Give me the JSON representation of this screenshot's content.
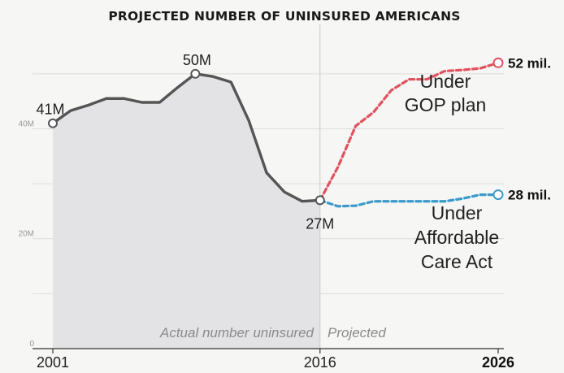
{
  "chart_data": {
    "type": "line",
    "title": "PROJECTED NUMBER OF UNINSURED AMERICANS",
    "xlim": [
      2001,
      2026
    ],
    "ylim": [
      0,
      55
    ],
    "yticks": [
      {
        "value": 0,
        "label": "0"
      },
      {
        "value": 20,
        "label": "20M"
      },
      {
        "value": 40,
        "label": "40M"
      }
    ],
    "xticks": [
      {
        "value": 2001,
        "label": "2001",
        "bold": false
      },
      {
        "value": 2016,
        "label": "2016",
        "bold": false
      },
      {
        "value": 2026,
        "label": "2026",
        "bold": true
      }
    ],
    "grid": true,
    "series": [
      {
        "key": "actual",
        "style": "solid",
        "color": "#555555",
        "points": [
          [
            2001,
            41
          ],
          [
            2002,
            43.3
          ],
          [
            2003,
            44.3
          ],
          [
            2004,
            45.5
          ],
          [
            2005,
            45.5
          ],
          [
            2006,
            44.8
          ],
          [
            2007,
            44.8
          ],
          [
            2008,
            47.5
          ],
          [
            2009,
            50
          ],
          [
            2010,
            49.5
          ],
          [
            2011,
            48.5
          ],
          [
            2012,
            41.5
          ],
          [
            2013,
            32
          ],
          [
            2014,
            28.5
          ],
          [
            2015,
            26.8
          ],
          [
            2016,
            27
          ]
        ]
      },
      {
        "key": "gop",
        "style": "dashed",
        "color": "#e0525e",
        "points": [
          [
            2016,
            27
          ],
          [
            2017,
            33
          ],
          [
            2018,
            40.5
          ],
          [
            2019,
            43
          ],
          [
            2020,
            47
          ],
          [
            2021,
            49
          ],
          [
            2022,
            49
          ],
          [
            2023,
            50.5
          ],
          [
            2024,
            50.7
          ],
          [
            2025,
            51
          ],
          [
            2026,
            52
          ]
        ]
      },
      {
        "key": "aca",
        "style": "dashed",
        "color": "#3b9acb",
        "points": [
          [
            2016,
            27
          ],
          [
            2017,
            25.9
          ],
          [
            2018,
            26
          ],
          [
            2019,
            26.8
          ],
          [
            2020,
            26.8
          ],
          [
            2021,
            26.8
          ],
          [
            2022,
            26.8
          ],
          [
            2023,
            26.8
          ],
          [
            2024,
            27.3
          ],
          [
            2025,
            28
          ],
          [
            2026,
            28
          ]
        ]
      }
    ],
    "point_labels": [
      {
        "text": "41M",
        "x": 2001,
        "y": 41
      },
      {
        "text": "50M",
        "x": 2009,
        "y": 50
      },
      {
        "text": "27M",
        "x": 2016,
        "y": 27
      }
    ],
    "end_labels": [
      {
        "text": "52 mil.",
        "x": 2026,
        "y": 52,
        "color": "#e0525e"
      },
      {
        "text": "28 mil.",
        "x": 2026,
        "y": 28,
        "color": "#3b9acb"
      }
    ],
    "annotations": {
      "gop": [
        "Under",
        "GOP plan"
      ],
      "aca": [
        "Under",
        "Affordable",
        "Care Act"
      ]
    },
    "regions": {
      "actual_label": "Actual number uninsured",
      "projected_label": "Projected",
      "split_x": 2016,
      "actual_fill": "#e3e3e6"
    }
  }
}
